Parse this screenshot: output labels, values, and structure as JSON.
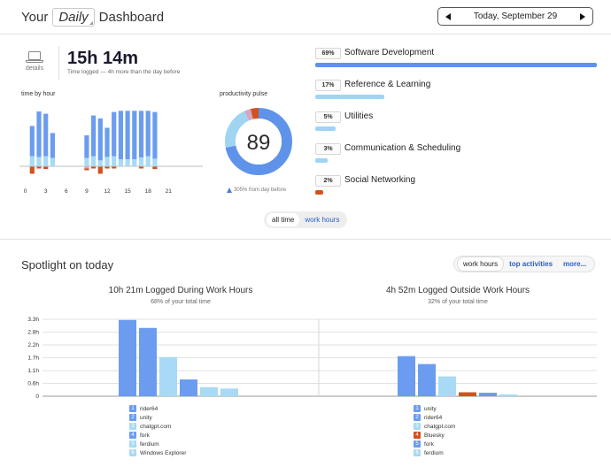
{
  "header": {
    "title_prefix": "Your",
    "period": "Daily",
    "title_suffix": "Dashboard",
    "date_label": "Today, September 29"
  },
  "summary": {
    "details_label": "details",
    "total_time": "15h 14m",
    "time_sub": "Time logged — 4h more than the day before"
  },
  "time_by_hour": {
    "label": "time by hour",
    "tick_labels": [
      "0",
      "3",
      "6",
      "9",
      "12",
      "15",
      "18",
      "21"
    ],
    "colors": {
      "productive": "#6b9cf0",
      "neutral": "#a8daf5",
      "distracting": "#d1511f",
      "other": "#d7a5c2"
    },
    "hours": [
      {
        "h": 1,
        "productive": 0.52,
        "neutral": 0.17,
        "distracting": 0.12
      },
      {
        "h": 2,
        "productive": 0.78,
        "neutral": 0.16,
        "distracting": 0.03
      },
      {
        "h": 3,
        "productive": 0.73,
        "neutral": 0.17,
        "distracting": 0.04
      },
      {
        "h": 4,
        "productive": 0.43,
        "neutral": 0.14,
        "distracting": 0.0
      },
      {
        "h": 9,
        "productive": 0.39,
        "neutral": 0.14,
        "distracting": 0.03,
        "other": 0.03
      },
      {
        "h": 10,
        "productive": 0.7,
        "neutral": 0.17,
        "distracting": 0.03
      },
      {
        "h": 11,
        "productive": 0.72,
        "neutral": 0.1,
        "distracting": 0.12
      },
      {
        "h": 12,
        "productive": 0.5,
        "neutral": 0.16,
        "distracting": 0.03
      },
      {
        "h": 13,
        "productive": 0.76,
        "neutral": 0.17,
        "distracting": 0.03
      },
      {
        "h": 14,
        "productive": 0.83,
        "neutral": 0.12,
        "distracting": 0.0
      },
      {
        "h": 15,
        "productive": 0.83,
        "neutral": 0.12,
        "distracting": 0.0
      },
      {
        "h": 16,
        "productive": 0.83,
        "neutral": 0.12,
        "distracting": 0.0
      },
      {
        "h": 17,
        "productive": 0.8,
        "neutral": 0.15,
        "distracting": 0.03
      },
      {
        "h": 18,
        "productive": 0.78,
        "neutral": 0.17,
        "distracting": 0.0
      },
      {
        "h": 19,
        "productive": 0.8,
        "neutral": 0.13,
        "distracting": 0.04
      }
    ]
  },
  "pulse": {
    "label": "productivity pulse",
    "score": "89",
    "footnote": "305% from day before",
    "segments": [
      {
        "name": "productive",
        "value": 0.72,
        "color": "#5f93ea"
      },
      {
        "name": "neutral",
        "value": 0.21,
        "color": "#9fd4f3"
      },
      {
        "name": "other",
        "value": 0.03,
        "color": "#d7a5c2"
      },
      {
        "name": "distracting",
        "value": 0.04,
        "color": "#d1511f"
      }
    ]
  },
  "categories": [
    {
      "pct": "69%",
      "name": "Software Development",
      "fraction": 1.0,
      "color": "#5f93ea"
    },
    {
      "pct": "17%",
      "name": "Reference & Learning",
      "fraction": 0.245,
      "color": "#9fd4f3"
    },
    {
      "pct": "5%",
      "name": "Utilities",
      "fraction": 0.072,
      "color": "#9fd4f3"
    },
    {
      "pct": "3%",
      "name": "Communication & Scheduling",
      "fraction": 0.043,
      "color": "#9fd4f3"
    },
    {
      "pct": "2%",
      "name": "Social Networking",
      "fraction": 0.029,
      "color": "#d1511f"
    }
  ],
  "toggle": {
    "all_time": "all time",
    "work_hours": "work hours"
  },
  "spotlight": {
    "title": "Spotlight on today",
    "tabs": [
      "work hours",
      "top activities",
      "more..."
    ]
  },
  "chart_data": [
    {
      "type": "bar",
      "title": "10h 21m Logged During Work Hours",
      "subtitle": "68% of your total time",
      "y_ticks": [
        "3.3h",
        "2.8h",
        "2.2h",
        "1.7h",
        "1.1h",
        "0.6h",
        "0"
      ],
      "ylim": [
        0,
        3.3
      ],
      "categories": [
        "rider64",
        "unity",
        "chatgpt.com",
        "fork",
        "ferdium",
        "Windows Explorer"
      ],
      "values": [
        3.27,
        2.93,
        1.68,
        0.72,
        0.39,
        0.33
      ],
      "colors": [
        "#6b9cf0",
        "#6b9cf0",
        "#a8daf5",
        "#6b9cf0",
        "#a8daf5",
        "#a8daf5"
      ]
    },
    {
      "type": "bar",
      "title": "4h 52m Logged Outside Work Hours",
      "subtitle": "32% of your total time",
      "y_ticks": [
        "3.3h",
        "2.8h",
        "2.2h",
        "1.7h",
        "1.1h",
        "0.6h",
        "0"
      ],
      "ylim": [
        0,
        3.3
      ],
      "categories": [
        "unity",
        "rider64",
        "chatgpt.com",
        "Bluesky",
        "fork",
        "ferdium"
      ],
      "values": [
        1.72,
        1.38,
        0.85,
        0.17,
        0.15,
        0.08
      ],
      "colors": [
        "#6b9cf0",
        "#6b9cf0",
        "#a8daf5",
        "#d1511f",
        "#6b9cf0",
        "#a8daf5"
      ]
    }
  ]
}
